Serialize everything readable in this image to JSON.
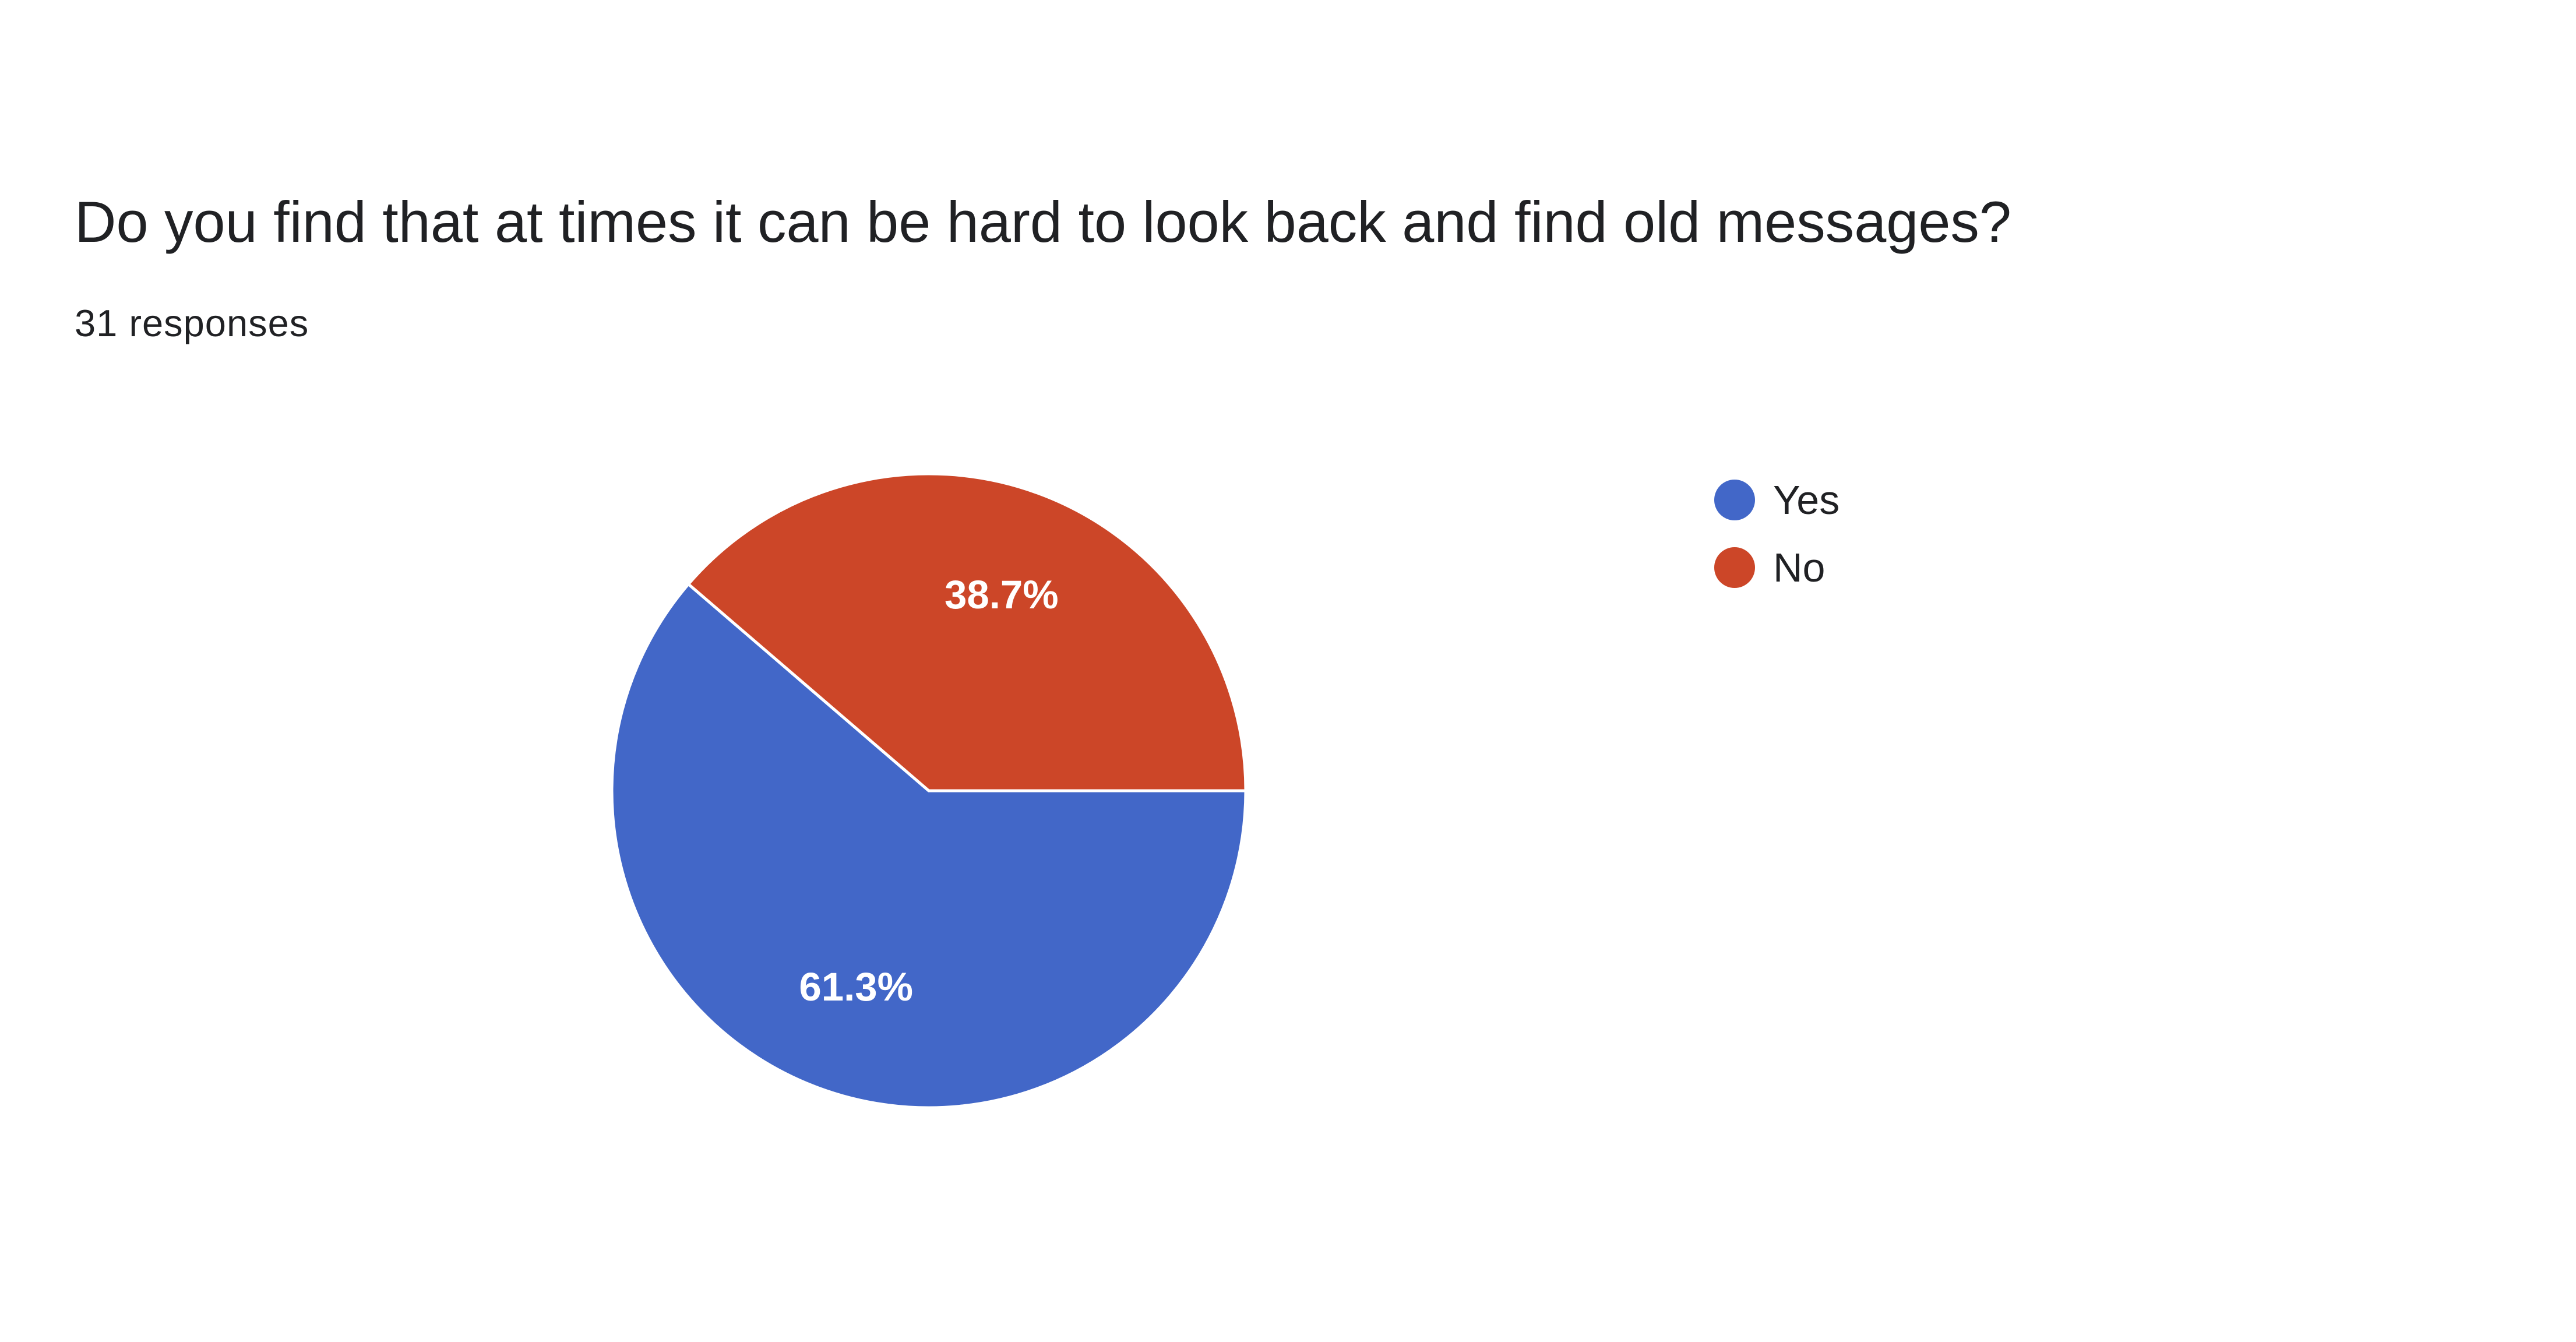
{
  "question": {
    "title": "Do you find that at times it can be hard to look back and find old messages?",
    "response_count": "31 responses"
  },
  "chart_data": {
    "type": "pie",
    "categories": [
      "Yes",
      "No"
    ],
    "values": [
      61.3,
      38.7
    ],
    "data_labels": [
      "61.3%",
      "38.7%"
    ],
    "colors": [
      "#4267c8",
      "#cc4628"
    ],
    "legend_position": "right"
  },
  "legend": {
    "items": [
      {
        "label": "Yes",
        "color": "#4267c8"
      },
      {
        "label": "No",
        "color": "#cc4628"
      }
    ]
  }
}
